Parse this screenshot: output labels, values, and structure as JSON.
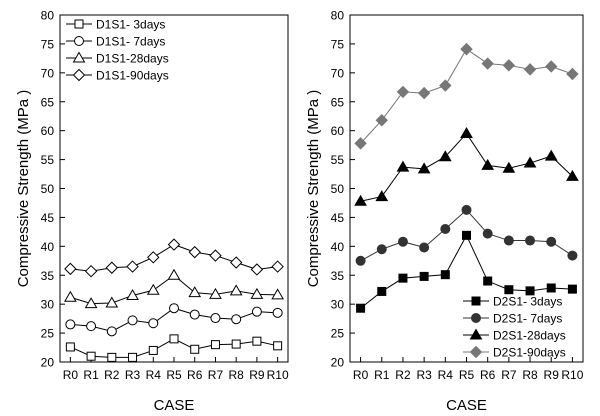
{
  "chart_data": [
    {
      "type": "line",
      "title": "",
      "xlabel": "CASE",
      "ylabel": "Compressive Strength (MPa )",
      "ylim": [
        20,
        80
      ],
      "yticks": [
        20,
        25,
        30,
        35,
        40,
        45,
        50,
        55,
        60,
        65,
        70,
        75,
        80
      ],
      "categories": [
        "R0",
        "R1",
        "R2",
        "R3",
        "R4",
        "R5",
        "R6",
        "R7",
        "R8",
        "R9",
        "R10"
      ],
      "legend": "top-left",
      "grid": false,
      "series": [
        {
          "name": "D1S1- 3days",
          "marker": "square-open",
          "color": "#000000",
          "values": [
            22.6,
            21.0,
            20.8,
            20.8,
            22.0,
            24.0,
            22.2,
            23.0,
            23.1,
            23.6,
            22.8
          ]
        },
        {
          "name": "D1S1- 7days",
          "marker": "circle-open",
          "color": "#000000",
          "values": [
            26.5,
            26.2,
            25.3,
            27.2,
            26.7,
            29.3,
            28.2,
            27.6,
            27.4,
            28.7,
            28.5
          ]
        },
        {
          "name": "D1S1-28days",
          "marker": "triangle-open",
          "color": "#000000",
          "values": [
            31.2,
            30.1,
            30.2,
            31.5,
            32.4,
            35.0,
            32.0,
            31.7,
            32.3,
            31.7,
            31.6
          ]
        },
        {
          "name": "D1S1-90days",
          "marker": "diamond-open",
          "color": "#000000",
          "values": [
            36.1,
            35.7,
            36.3,
            36.5,
            38.1,
            40.3,
            39.0,
            38.4,
            37.2,
            36.0,
            36.5
          ]
        }
      ]
    },
    {
      "type": "line",
      "title": "",
      "xlabel": "CASE",
      "ylabel": "Compressive Strength (MPa )",
      "ylim": [
        20,
        80
      ],
      "yticks": [
        20,
        25,
        30,
        35,
        40,
        45,
        50,
        55,
        60,
        65,
        70,
        75,
        80
      ],
      "categories": [
        "R0",
        "R1",
        "R2",
        "R3",
        "R4",
        "R5",
        "R6",
        "R7",
        "R8",
        "R9",
        "R10"
      ],
      "legend": "bottom-right",
      "grid": false,
      "series": [
        {
          "name": "D2S1- 3days",
          "marker": "square-filled",
          "color": "#000000",
          "values": [
            29.3,
            32.2,
            34.5,
            34.8,
            35.1,
            41.9,
            34.0,
            32.5,
            32.3,
            32.8,
            32.6
          ]
        },
        {
          "name": "D2S1- 7days",
          "marker": "circle-filled",
          "color": "#333333",
          "values": [
            37.5,
            39.5,
            40.8,
            39.8,
            43.0,
            46.3,
            42.2,
            41.0,
            41.0,
            40.8,
            38.4
          ]
        },
        {
          "name": "D2S1-28days",
          "marker": "triangle-filled",
          "color": "#000000",
          "values": [
            47.8,
            48.6,
            53.7,
            53.4,
            55.5,
            59.5,
            54.0,
            53.5,
            54.4,
            55.6,
            52.1
          ]
        },
        {
          "name": "D2S1-90days",
          "marker": "diamond-filled",
          "color": "#777777",
          "values": [
            57.8,
            61.8,
            66.7,
            66.5,
            67.8,
            74.1,
            71.6,
            71.3,
            70.6,
            71.1,
            69.8
          ]
        }
      ]
    }
  ]
}
